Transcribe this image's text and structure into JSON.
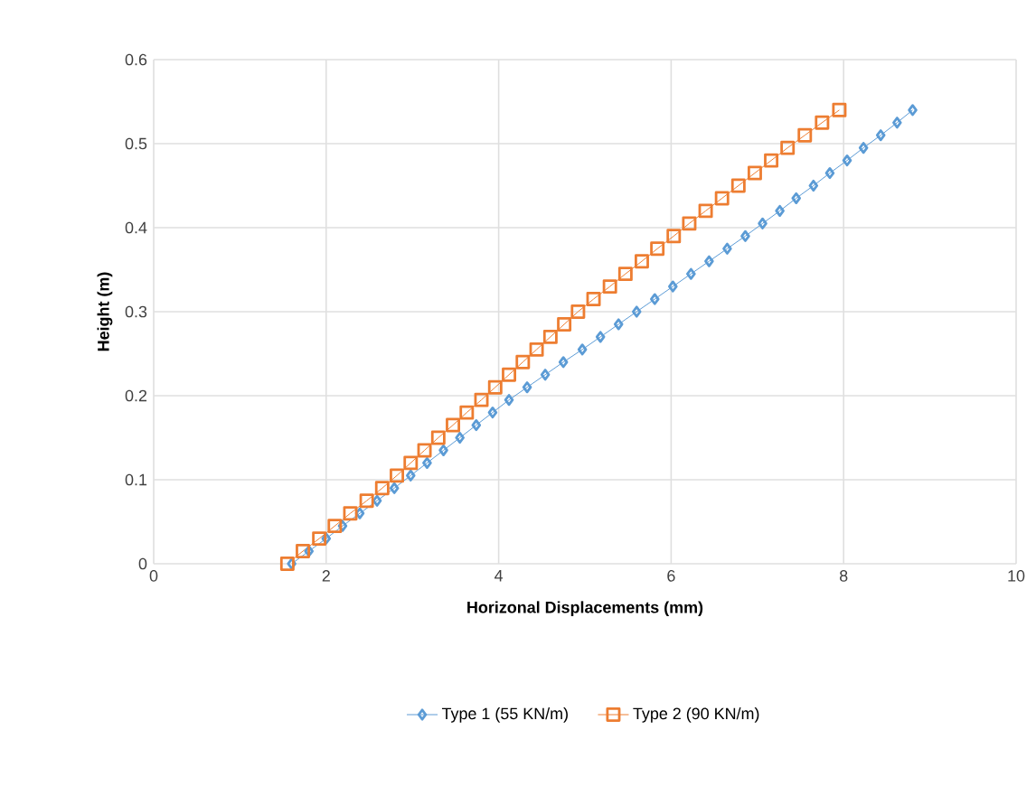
{
  "chart_data": {
    "type": "line",
    "xlabel": "Horizonal Displacements (mm)",
    "ylabel": "Height (m)",
    "xlim": [
      0,
      10
    ],
    "xticks": [
      0,
      2,
      4,
      6,
      8,
      10
    ],
    "ylim": [
      0,
      0.6
    ],
    "yticks": [
      0,
      0.1,
      0.2,
      0.3,
      0.4,
      0.5,
      0.6
    ],
    "grid": true,
    "legend": "bottom",
    "line_style": "solid",
    "series": [
      {
        "name": "Type 1 (55 KN/m)",
        "color": "#5b9bd5",
        "marker": "diamond",
        "x": [
          1.6,
          1.8,
          2.0,
          2.19,
          2.39,
          2.59,
          2.79,
          2.98,
          3.17,
          3.36,
          3.55,
          3.74,
          3.93,
          4.12,
          4.33,
          4.54,
          4.75,
          4.97,
          5.18,
          5.39,
          5.6,
          5.81,
          6.02,
          6.23,
          6.44,
          6.65,
          6.86,
          7.06,
          7.26,
          7.45,
          7.65,
          7.84,
          8.04,
          8.23,
          8.43,
          8.62,
          8.8
        ],
        "values": [
          0,
          0.015,
          0.03,
          0.045,
          0.06,
          0.075,
          0.09,
          0.105,
          0.12,
          0.135,
          0.15,
          0.165,
          0.18,
          0.195,
          0.21,
          0.225,
          0.24,
          0.255,
          0.27,
          0.285,
          0.3,
          0.315,
          0.33,
          0.345,
          0.36,
          0.375,
          0.39,
          0.405,
          0.42,
          0.435,
          0.45,
          0.465,
          0.48,
          0.495,
          0.51,
          0.525,
          0.54
        ]
      },
      {
        "name": "Type 2 (90 KN/m)",
        "color": "#ed7d31",
        "marker": "square",
        "x": [
          1.55,
          1.73,
          1.92,
          2.1,
          2.28,
          2.47,
          2.65,
          2.82,
          2.98,
          3.14,
          3.3,
          3.47,
          3.63,
          3.8,
          3.96,
          4.12,
          4.28,
          4.44,
          4.6,
          4.76,
          4.92,
          5.1,
          5.29,
          5.47,
          5.66,
          5.84,
          6.03,
          6.21,
          6.4,
          6.59,
          6.78,
          6.97,
          7.16,
          7.35,
          7.55,
          7.75,
          7.95
        ],
        "values": [
          0,
          0.015,
          0.03,
          0.045,
          0.06,
          0.075,
          0.09,
          0.105,
          0.12,
          0.135,
          0.15,
          0.165,
          0.18,
          0.195,
          0.21,
          0.225,
          0.24,
          0.255,
          0.27,
          0.285,
          0.3,
          0.315,
          0.33,
          0.345,
          0.36,
          0.375,
          0.39,
          0.405,
          0.42,
          0.435,
          0.45,
          0.465,
          0.48,
          0.495,
          0.51,
          0.525,
          0.54
        ]
      }
    ]
  }
}
